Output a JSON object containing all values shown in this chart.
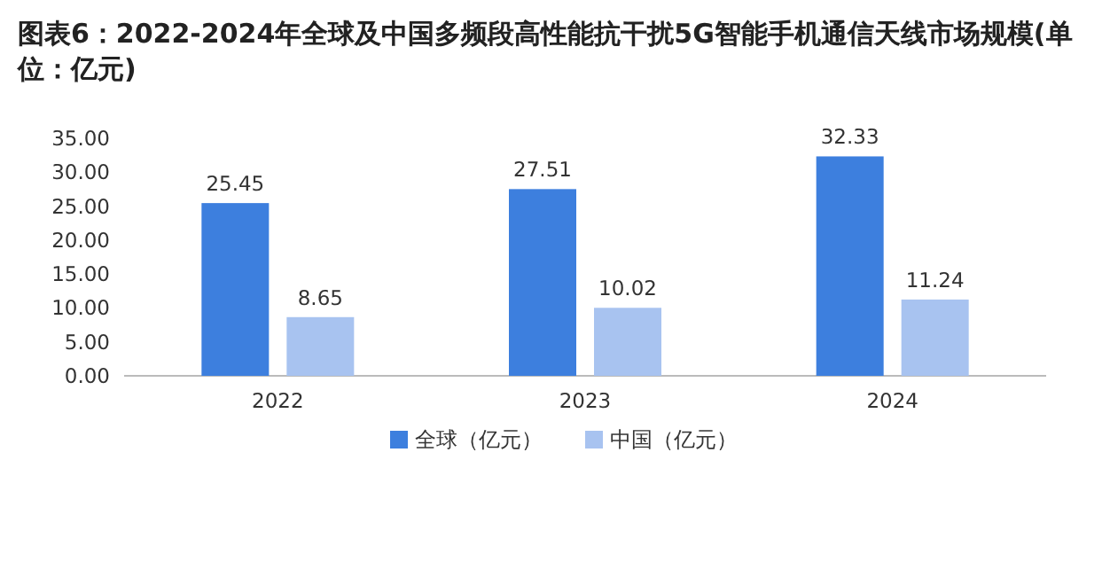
{
  "chart_data": {
    "type": "bar",
    "title": "图表6：2022-2024年全球及中国多频段高性能抗干扰5G智能手机通信天线市场规模(单位：亿元)",
    "categories": [
      "2022",
      "2023",
      "2024"
    ],
    "series": [
      {
        "name": "全球（亿元）",
        "color": "#3d7fde",
        "values": [
          25.45,
          27.51,
          32.33
        ]
      },
      {
        "name": "中国（亿元）",
        "color": "#a8c3f0",
        "values": [
          8.65,
          10.02,
          11.24
        ]
      }
    ],
    "ylim": [
      0,
      35
    ],
    "yticks": [
      {
        "value": 0,
        "label": "0.00"
      },
      {
        "value": 5,
        "label": "5.00"
      },
      {
        "value": 10,
        "label": "10.00"
      },
      {
        "value": 15,
        "label": "15.00"
      },
      {
        "value": 20,
        "label": "20.00"
      },
      {
        "value": 25,
        "label": "25.00"
      },
      {
        "value": 30,
        "label": "30.00"
      },
      {
        "value": 35,
        "label": "35.00"
      }
    ],
    "data_labels": true,
    "legend": "bottom"
  }
}
